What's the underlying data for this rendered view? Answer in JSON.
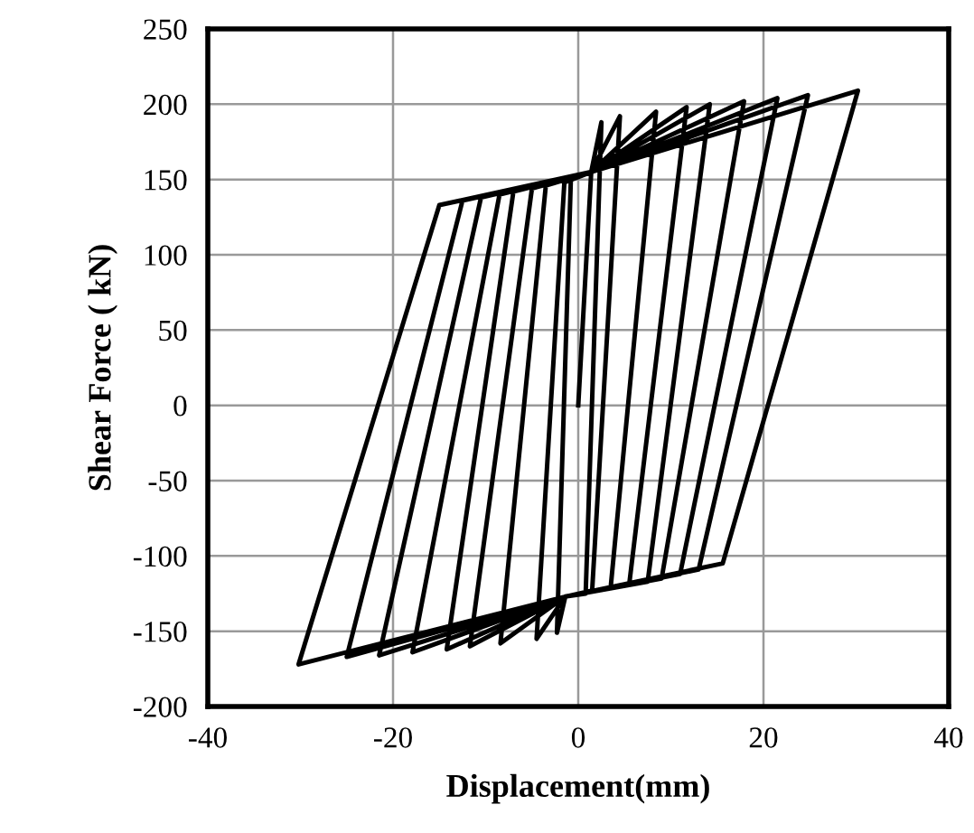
{
  "chart_data": {
    "type": "line",
    "xlabel": "Displacement(mm)",
    "ylabel": "Shear Force ( kN)",
    "series": [
      {
        "color": "#000000",
        "x": [
          0,
          1.4,
          2.5,
          0.8,
          -1.4,
          -2.3,
          -0.8,
          1.4,
          4.5,
          1.5,
          -1.4,
          -4.5,
          -1.5,
          1.4,
          8.4,
          3.5,
          -1.4,
          -8.4,
          -3.5,
          1.4,
          11.7,
          5.5,
          -1.4,
          -11.7,
          -5,
          1.4,
          14.2,
          7.5,
          -1.4,
          -14.2,
          -7,
          1.4,
          17.9,
          9,
          -1.4,
          -17.9,
          -8.5,
          1.4,
          21.5,
          11,
          -1.4,
          -21.5,
          -10.5,
          1.4,
          24.8,
          13,
          -1.4,
          -25,
          -12.5,
          1.4,
          30.2,
          15.6,
          -1.4,
          -30.2,
          -15,
          1.4
        ],
        "values": [
          0,
          155,
          188,
          -125,
          -127,
          -151,
          150,
          155,
          192,
          -123,
          -127,
          -155,
          148,
          155,
          195,
          -121,
          -127,
          -158,
          146,
          155,
          198,
          -119,
          -127,
          -160,
          144,
          155,
          200,
          -117,
          -127,
          -162,
          142,
          155,
          202,
          -115,
          -127,
          -164,
          140,
          155,
          204,
          -112,
          -127,
          -166,
          138,
          155,
          206,
          -109,
          -127,
          -167,
          136,
          155,
          209,
          -105,
          -127,
          -172,
          133,
          155
        ]
      }
    ],
    "xlim": [
      -40,
      40
    ],
    "xticks": [
      -40,
      -20,
      0,
      20,
      40
    ],
    "ylim": [
      -200,
      250
    ],
    "yticks": [
      -200,
      -150,
      -100,
      -50,
      0,
      50,
      100,
      150,
      200,
      250
    ],
    "grid": true,
    "marker": "none",
    "line_style": "solid"
  }
}
